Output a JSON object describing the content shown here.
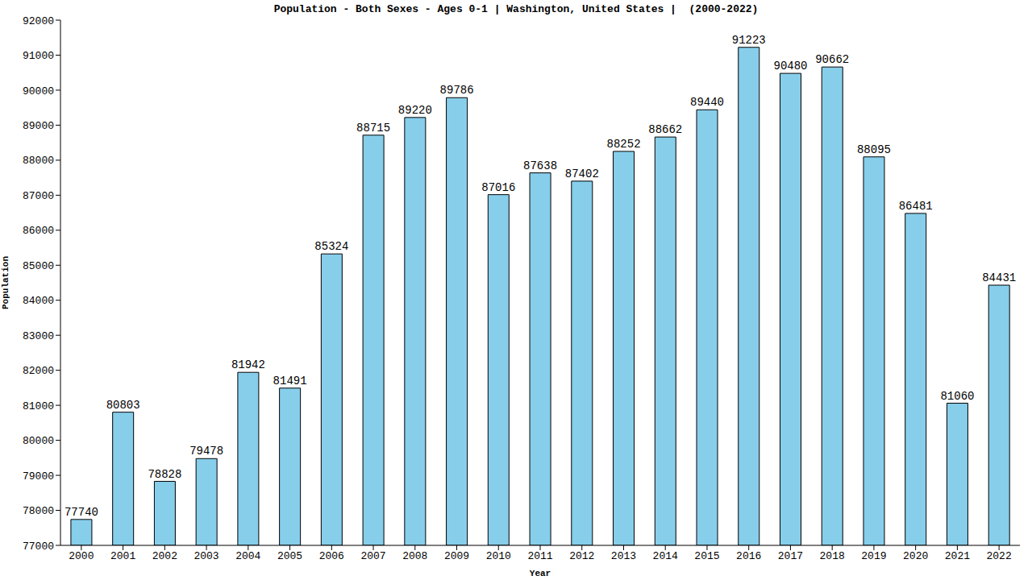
{
  "chart_data": {
    "type": "bar",
    "title": "Population - Both Sexes - Ages 0-1 | Washington, United States |  (2000-2022)",
    "x_label": "Year",
    "y_label": "Population",
    "categories": [
      "2000",
      "2001",
      "2002",
      "2003",
      "2004",
      "2005",
      "2006",
      "2007",
      "2008",
      "2009",
      "2010",
      "2011",
      "2012",
      "2013",
      "2014",
      "2015",
      "2016",
      "2017",
      "2018",
      "2019",
      "2020",
      "2021",
      "2022"
    ],
    "values": [
      77740,
      80803,
      78828,
      79478,
      81942,
      81491,
      85324,
      88715,
      89220,
      89786,
      87016,
      87638,
      87402,
      88252,
      88662,
      89440,
      91223,
      90480,
      90662,
      88095,
      86481,
      81060,
      84431
    ],
    "color": "#87ceeb",
    "ylim": [
      77000,
      92000
    ],
    "yticks": [
      77000,
      78000,
      79000,
      80000,
      81000,
      82000,
      83000,
      84000,
      85000,
      86000,
      87000,
      88000,
      89000,
      90000,
      91000,
      92000
    ],
    "grid": false,
    "data_labels": true
  }
}
